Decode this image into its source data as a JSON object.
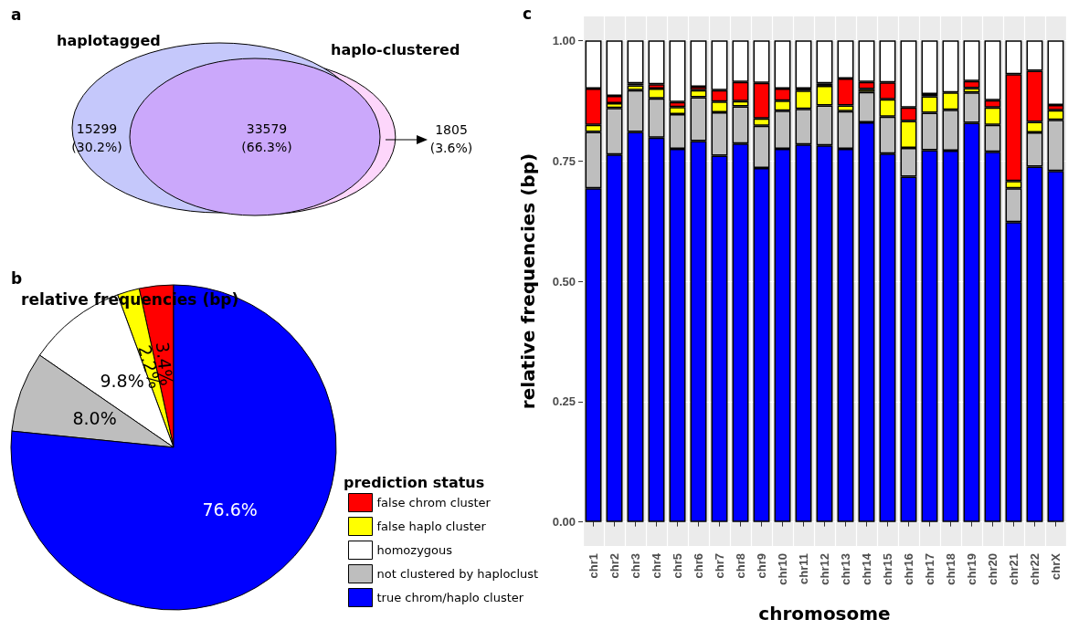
{
  "chart_data": [
    {
      "type": "other",
      "annotations": [
        "a",
        "haplotagged",
        "haplo-clustered"
      ],
      "categories": [
        null,
        null,
        null
      ],
      "values": [
        15299,
        33579,
        1805
      ],
      "value_labels": [
        "15299\n(30.2%)",
        "33579\n(66.3%)",
        "1805\n(3.6%)"
      ],
      "colors": [
        "#c5c8fb",
        "#cba8fb",
        "#fdd6fb"
      ]
    },
    {
      "type": "pie",
      "annotations": [
        "b"
      ],
      "title": "relative frequencies (bp)",
      "legend_title": "prediction status",
      "legend": "bottom right",
      "value_labels": [
        "3.4%",
        "2.2%",
        "9.8%",
        "8.0%",
        "76.6%"
      ],
      "categories": [
        "false chrom cluster",
        "false haplo cluster",
        "homozygous",
        "not clustered by haploclust",
        "true chrom/haplo cluster"
      ],
      "values": [
        3.4,
        2.2,
        9.8,
        8.0,
        76.6
      ],
      "colors": [
        "#ff0000",
        "#ffff00",
        "#ffffff",
        "#bebebe",
        "#0000ff"
      ]
    },
    {
      "type": "bar",
      "annotations": [
        "c"
      ],
      "stacked": true,
      "grid": true,
      "xlabel": "chromosome",
      "ylabel": "relative frequencies (bp)",
      "categories": [
        "chr1",
        "chr2",
        "chr3",
        "chr4",
        "chr5",
        "chr6",
        "chr7",
        "chr8",
        "chr9",
        "chr10",
        "chr11",
        "chr12",
        "chr13",
        "chr14",
        "chr15",
        "chr16",
        "chr17",
        "chr18",
        "chr19",
        "chr20",
        "chr21",
        "chr22",
        "chrX"
      ],
      "ylim": [
        -0.05,
        1.05
      ],
      "yticks": [
        {
          "value": 0,
          "label": "0.00"
        },
        {
          "value": 0.25,
          "label": "0.25"
        },
        {
          "value": 0.5,
          "label": "0.50"
        },
        {
          "value": 0.75,
          "label": "0.75"
        },
        {
          "value": 1,
          "label": "1.00"
        }
      ],
      "series": [
        {
          "color": "#0000ff",
          "values": [
            0.693,
            0.763,
            0.81,
            0.798,
            0.775,
            0.791,
            0.761,
            0.786,
            0.735,
            0.775,
            0.784,
            0.782,
            0.775,
            0.83,
            0.765,
            0.717,
            0.772,
            0.771,
            0.829,
            0.769,
            0.623,
            0.738,
            0.729
          ]
        },
        {
          "color": "#bebebe",
          "values": [
            0.117,
            0.097,
            0.087,
            0.082,
            0.072,
            0.091,
            0.09,
            0.077,
            0.088,
            0.079,
            0.074,
            0.083,
            0.078,
            0.063,
            0.077,
            0.06,
            0.078,
            0.085,
            0.063,
            0.056,
            0.07,
            0.071,
            0.106
          ]
        },
        {
          "color": "#ffff00",
          "values": [
            0.015,
            0.01,
            0.01,
            0.02,
            0.015,
            0.015,
            0.022,
            0.011,
            0.015,
            0.021,
            0.038,
            0.041,
            0.012,
            0.006,
            0.036,
            0.056,
            0.034,
            0.036,
            0.009,
            0.036,
            0.015,
            0.022,
            0.02
          ]
        },
        {
          "color": "#ff0000",
          "values": [
            0.075,
            0.015,
            0.004,
            0.009,
            0.01,
            0.007,
            0.024,
            0.04,
            0.074,
            0.025,
            0.004,
            0.005,
            0.056,
            0.015,
            0.035,
            0.028,
            0.005,
            null,
            0.015,
            0.015,
            0.222,
            0.106,
            0.011
          ]
        },
        {
          "color": "#ffffff",
          "values": [
            0.1,
            0.115,
            0.089,
            0.091,
            0.128,
            0.096,
            0.103,
            0.086,
            0.088,
            0.1,
            0.1,
            0.089,
            0.079,
            0.086,
            0.087,
            0.139,
            0.111,
            0.108,
            0.084,
            0.124,
            0.07,
            0.063,
            0.134
          ]
        }
      ]
    }
  ]
}
